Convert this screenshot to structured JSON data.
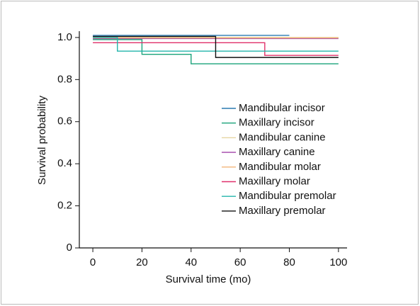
{
  "chart_data": {
    "type": "line",
    "drawstyle": "steps-post",
    "xlabel": "Survival time (mo)",
    "ylabel": "Survival probability",
    "xlim": [
      -5.5,
      103.5
    ],
    "ylim": [
      0,
      1.03
    ],
    "xticks": [
      0,
      20,
      40,
      60,
      80,
      100
    ],
    "yticks": [
      0,
      {
        "value": 0.2,
        "label": "0.2"
      },
      {
        "value": 0.4,
        "label": "0.4"
      },
      {
        "value": 0.6,
        "label": "0.6"
      },
      {
        "value": 0.8,
        "label": "0.8"
      },
      {
        "value": 1,
        "label": "1.0"
      }
    ],
    "legend": "right",
    "series": [
      {
        "name": "Mandibular incisor",
        "color": "#2a7ab0",
        "x": [
          0,
          80
        ],
        "values": [
          1.01,
          1.01
        ]
      },
      {
        "name": "Maxillary incisor",
        "color": "#1aa37a",
        "x": [
          0,
          20,
          40,
          100
        ],
        "values": [
          0.99,
          0.92,
          0.875,
          0.875
        ]
      },
      {
        "name": "Mandibular canine",
        "color": "#e6d6a2",
        "x": [
          0,
          100
        ],
        "values": [
          1.0,
          1.0
        ]
      },
      {
        "name": "Maxillary canine",
        "color": "#a040a8",
        "x": [
          0,
          100
        ],
        "values": [
          0.995,
          0.995
        ]
      },
      {
        "name": "Mandibular molar",
        "color": "#f2b57a",
        "x": [
          0,
          100
        ],
        "values": [
          0.998,
          0.998
        ]
      },
      {
        "name": "Maxillary molar",
        "color": "#e0306a",
        "x": [
          0,
          70,
          100
        ],
        "values": [
          0.975,
          0.915,
          0.915
        ]
      },
      {
        "name": "Mandibular premolar",
        "color": "#22b5ab",
        "x": [
          0,
          10,
          100
        ],
        "values": [
          1.0,
          0.935,
          0.935
        ]
      },
      {
        "name": "Maxillary premolar",
        "color": "#111111",
        "x": [
          0,
          50,
          100
        ],
        "values": [
          1.005,
          0.905,
          0.905
        ]
      }
    ]
  }
}
